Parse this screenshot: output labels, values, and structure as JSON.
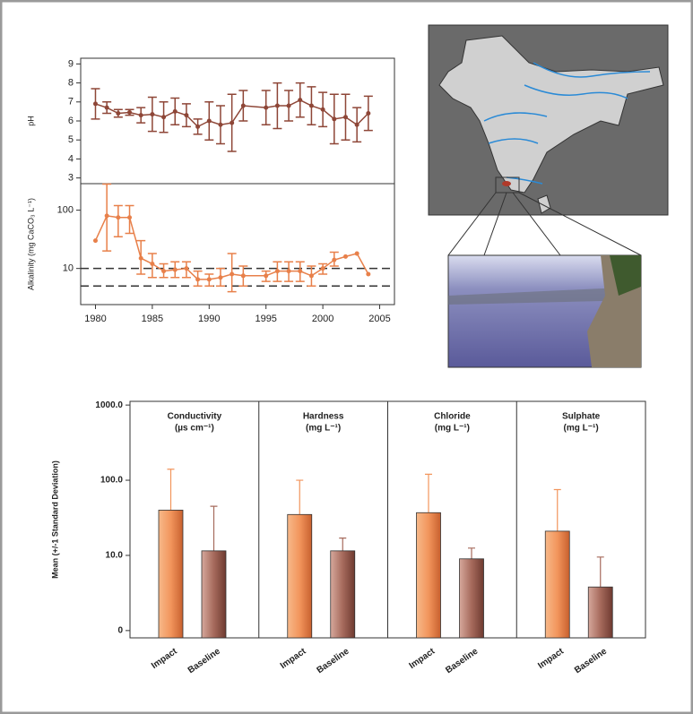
{
  "chart_data": [
    {
      "type": "errorline",
      "ylabel": "pH",
      "log_y": false,
      "color": "#8e4637",
      "x": [
        1980,
        1981,
        1982,
        1983,
        1984,
        1985,
        1986,
        1987,
        1988,
        1989,
        1990,
        1991,
        1992,
        1993,
        1995,
        1996,
        1997,
        1998,
        1999,
        2000,
        2001,
        2002,
        2003,
        2004
      ],
      "values": [
        6.9,
        6.7,
        6.4,
        6.45,
        6.3,
        6.35,
        6.2,
        6.5,
        6.3,
        5.7,
        6.0,
        5.8,
        5.9,
        6.8,
        6.7,
        6.8,
        6.8,
        7.1,
        6.8,
        6.6,
        6.1,
        6.2,
        5.8,
        6.4
      ],
      "errors": [
        0.8,
        0.3,
        0.2,
        0.15,
        0.4,
        0.9,
        0.8,
        0.7,
        0.6,
        0.4,
        1.0,
        1.0,
        1.5,
        0.8,
        0.9,
        1.2,
        0.8,
        0.9,
        1.0,
        0.9,
        1.3,
        1.2,
        0.9,
        0.9
      ],
      "xlim": [
        1978.7,
        2006.3
      ],
      "ylim": [
        2.7,
        9.3
      ],
      "yticks": [
        3,
        4,
        5,
        6,
        7,
        8,
        9
      ]
    },
    {
      "type": "errorline",
      "ylabel": "Alkalinity (mg CaCO₃ L⁻¹)",
      "log_y": true,
      "color": "#e8804a",
      "x": [
        1980,
        1981,
        1982,
        1983,
        1984,
        1985,
        1986,
        1987,
        1988,
        1989,
        1990,
        1991,
        1992,
        1993,
        1995,
        1996,
        1997,
        1998,
        1999,
        2000,
        2001,
        2002,
        2003,
        2004
      ],
      "values": [
        30,
        80,
        75,
        75,
        15,
        12,
        9,
        9.5,
        10,
        6.5,
        6.5,
        7,
        8,
        7.5,
        7.5,
        9,
        9,
        9,
        7.5,
        10,
        14,
        16,
        18,
        8
      ],
      "lower": [
        null,
        20,
        35,
        40,
        8,
        7,
        7,
        7,
        7,
        5,
        5,
        5,
        4,
        5,
        6,
        6,
        6,
        6,
        5,
        8,
        11,
        null,
        null,
        null
      ],
      "upper": [
        null,
        280,
        120,
        120,
        30,
        18,
        12,
        13,
        13,
        9,
        8,
        10,
        18,
        11,
        9,
        13,
        13,
        13,
        11,
        12,
        19,
        null,
        null,
        null
      ],
      "hlines": [
        10,
        5
      ],
      "xlim": [
        1978.7,
        2006.3
      ],
      "ylim": [
        2.4,
        285
      ],
      "yticks": [
        10,
        100
      ],
      "xticks": [
        1980,
        1985,
        1990,
        1995,
        2000,
        2005
      ]
    },
    {
      "type": "panelbar",
      "ylabel": "Mean (+/-1 Standard Deviation)",
      "log_y": true,
      "categories": [
        "Conductivity",
        "Hardness",
        "Chloride",
        "Sulphate"
      ],
      "category_units": [
        "(µs  cm⁻¹)",
        "(mg L⁻¹)",
        "(mg L⁻¹)",
        "(mg L⁻¹)"
      ],
      "series": [
        {
          "name": "Impact",
          "color": "#f2955c",
          "values": [
            40,
            35,
            37,
            21
          ],
          "upper": [
            140,
            100,
            120,
            75
          ]
        },
        {
          "name": "Baseline",
          "color": "#a66a5c",
          "values": [
            11.5,
            11.5,
            9,
            3.8
          ],
          "upper": [
            45,
            17,
            12.5,
            9.5
          ]
        }
      ],
      "ylim": [
        0.8,
        1120
      ],
      "yticks": [
        {
          "value": 1,
          "label": "0"
        },
        {
          "value": 10,
          "label": "10.0"
        },
        {
          "value": 100,
          "label": "100.0"
        },
        {
          "value": 1000,
          "label": "1000.0"
        }
      ]
    }
  ]
}
